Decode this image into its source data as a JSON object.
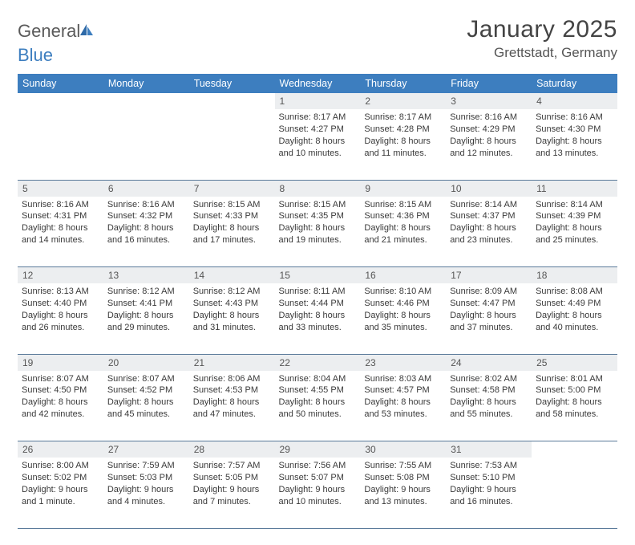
{
  "logo": {
    "text1": "General",
    "text2": "Blue"
  },
  "title": "January 2025",
  "location": "Grettstadt, Germany",
  "colors": {
    "header_bg": "#3d7ebf",
    "header_text": "#ffffff",
    "daynum_bg": "#eceef0",
    "row_border": "#5a7a9a",
    "text": "#3a3a3a",
    "page_bg": "#ffffff"
  },
  "typography": {
    "title_fontsize": 30,
    "location_fontsize": 17,
    "dayheader_fontsize": 12.5,
    "daynum_fontsize": 12,
    "cell_fontsize": 11
  },
  "dayHeaders": [
    "Sunday",
    "Monday",
    "Tuesday",
    "Wednesday",
    "Thursday",
    "Friday",
    "Saturday"
  ],
  "weeks": [
    [
      null,
      null,
      null,
      {
        "n": "1",
        "sunrise": "8:17 AM",
        "sunset": "4:27 PM",
        "daylight": "8 hours and 10 minutes."
      },
      {
        "n": "2",
        "sunrise": "8:17 AM",
        "sunset": "4:28 PM",
        "daylight": "8 hours and 11 minutes."
      },
      {
        "n": "3",
        "sunrise": "8:16 AM",
        "sunset": "4:29 PM",
        "daylight": "8 hours and 12 minutes."
      },
      {
        "n": "4",
        "sunrise": "8:16 AM",
        "sunset": "4:30 PM",
        "daylight": "8 hours and 13 minutes."
      }
    ],
    [
      {
        "n": "5",
        "sunrise": "8:16 AM",
        "sunset": "4:31 PM",
        "daylight": "8 hours and 14 minutes."
      },
      {
        "n": "6",
        "sunrise": "8:16 AM",
        "sunset": "4:32 PM",
        "daylight": "8 hours and 16 minutes."
      },
      {
        "n": "7",
        "sunrise": "8:15 AM",
        "sunset": "4:33 PM",
        "daylight": "8 hours and 17 minutes."
      },
      {
        "n": "8",
        "sunrise": "8:15 AM",
        "sunset": "4:35 PM",
        "daylight": "8 hours and 19 minutes."
      },
      {
        "n": "9",
        "sunrise": "8:15 AM",
        "sunset": "4:36 PM",
        "daylight": "8 hours and 21 minutes."
      },
      {
        "n": "10",
        "sunrise": "8:14 AM",
        "sunset": "4:37 PM",
        "daylight": "8 hours and 23 minutes."
      },
      {
        "n": "11",
        "sunrise": "8:14 AM",
        "sunset": "4:39 PM",
        "daylight": "8 hours and 25 minutes."
      }
    ],
    [
      {
        "n": "12",
        "sunrise": "8:13 AM",
        "sunset": "4:40 PM",
        "daylight": "8 hours and 26 minutes."
      },
      {
        "n": "13",
        "sunrise": "8:12 AM",
        "sunset": "4:41 PM",
        "daylight": "8 hours and 29 minutes."
      },
      {
        "n": "14",
        "sunrise": "8:12 AM",
        "sunset": "4:43 PM",
        "daylight": "8 hours and 31 minutes."
      },
      {
        "n": "15",
        "sunrise": "8:11 AM",
        "sunset": "4:44 PM",
        "daylight": "8 hours and 33 minutes."
      },
      {
        "n": "16",
        "sunrise": "8:10 AM",
        "sunset": "4:46 PM",
        "daylight": "8 hours and 35 minutes."
      },
      {
        "n": "17",
        "sunrise": "8:09 AM",
        "sunset": "4:47 PM",
        "daylight": "8 hours and 37 minutes."
      },
      {
        "n": "18",
        "sunrise": "8:08 AM",
        "sunset": "4:49 PM",
        "daylight": "8 hours and 40 minutes."
      }
    ],
    [
      {
        "n": "19",
        "sunrise": "8:07 AM",
        "sunset": "4:50 PM",
        "daylight": "8 hours and 42 minutes."
      },
      {
        "n": "20",
        "sunrise": "8:07 AM",
        "sunset": "4:52 PM",
        "daylight": "8 hours and 45 minutes."
      },
      {
        "n": "21",
        "sunrise": "8:06 AM",
        "sunset": "4:53 PM",
        "daylight": "8 hours and 47 minutes."
      },
      {
        "n": "22",
        "sunrise": "8:04 AM",
        "sunset": "4:55 PM",
        "daylight": "8 hours and 50 minutes."
      },
      {
        "n": "23",
        "sunrise": "8:03 AM",
        "sunset": "4:57 PM",
        "daylight": "8 hours and 53 minutes."
      },
      {
        "n": "24",
        "sunrise": "8:02 AM",
        "sunset": "4:58 PM",
        "daylight": "8 hours and 55 minutes."
      },
      {
        "n": "25",
        "sunrise": "8:01 AM",
        "sunset": "5:00 PM",
        "daylight": "8 hours and 58 minutes."
      }
    ],
    [
      {
        "n": "26",
        "sunrise": "8:00 AM",
        "sunset": "5:02 PM",
        "daylight": "9 hours and 1 minute."
      },
      {
        "n": "27",
        "sunrise": "7:59 AM",
        "sunset": "5:03 PM",
        "daylight": "9 hours and 4 minutes."
      },
      {
        "n": "28",
        "sunrise": "7:57 AM",
        "sunset": "5:05 PM",
        "daylight": "9 hours and 7 minutes."
      },
      {
        "n": "29",
        "sunrise": "7:56 AM",
        "sunset": "5:07 PM",
        "daylight": "9 hours and 10 minutes."
      },
      {
        "n": "30",
        "sunrise": "7:55 AM",
        "sunset": "5:08 PM",
        "daylight": "9 hours and 13 minutes."
      },
      {
        "n": "31",
        "sunrise": "7:53 AM",
        "sunset": "5:10 PM",
        "daylight": "9 hours and 16 minutes."
      },
      null
    ]
  ],
  "labels": {
    "sunrise": "Sunrise: ",
    "sunset": "Sunset: ",
    "daylight": "Daylight: "
  }
}
